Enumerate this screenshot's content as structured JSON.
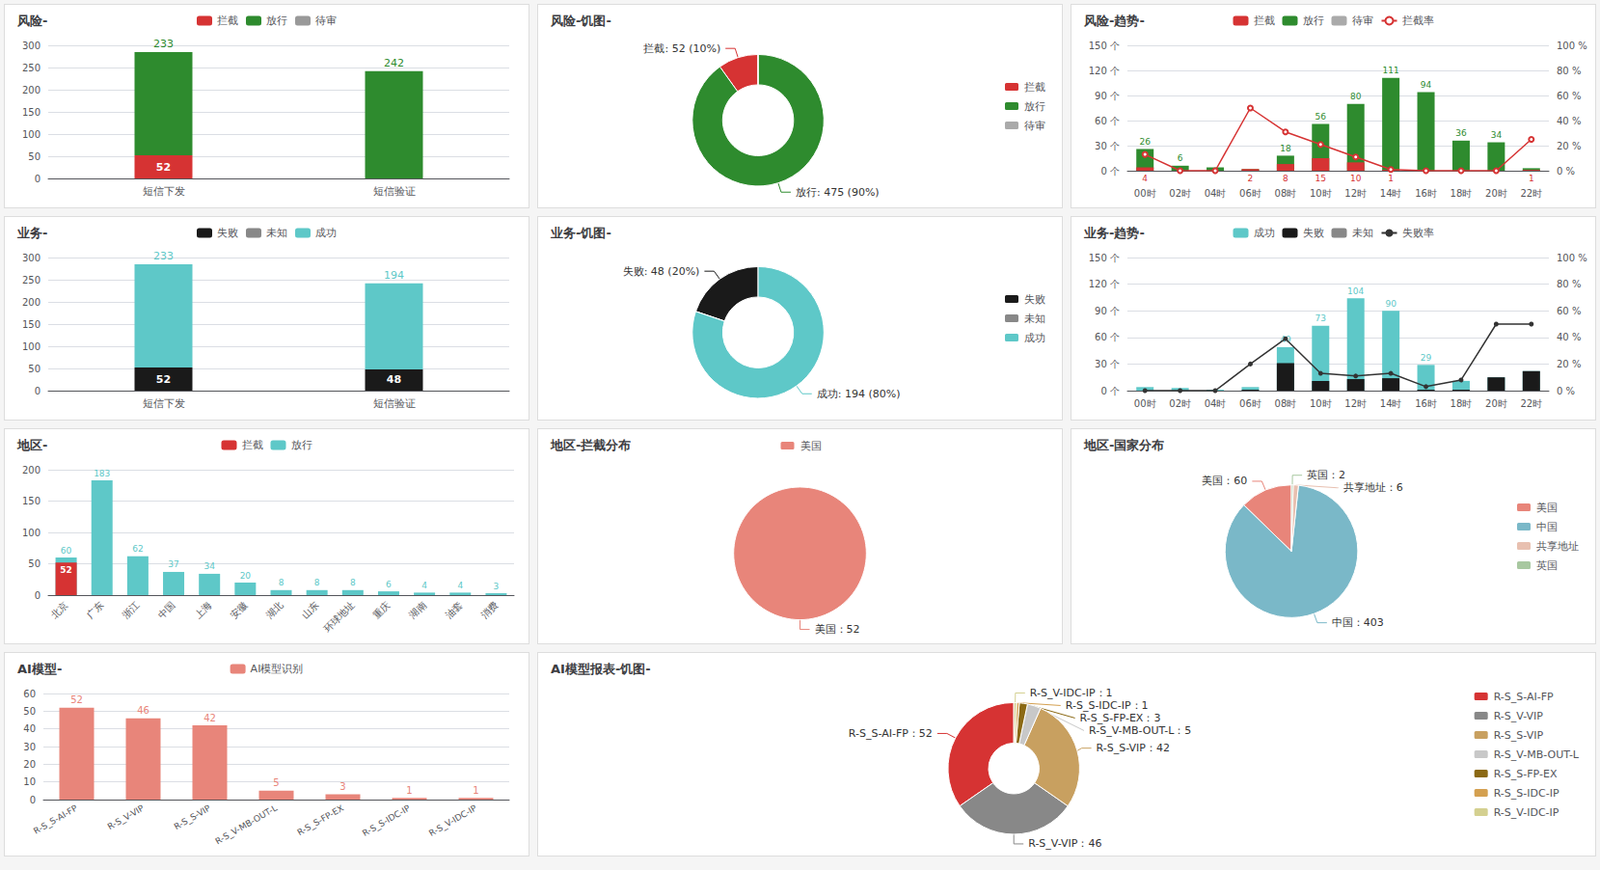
{
  "chart_data": [
    {
      "type": "bar",
      "title": "风险-",
      "categories": [
        "短信下发",
        "短信验证"
      ],
      "stacked": true,
      "series": [
        {
          "name": "拦截",
          "color": "#d63333",
          "values": [
            52,
            0
          ],
          "value_labels": [
            "52",
            null
          ]
        },
        {
          "name": "放行",
          "color": "#2e8b2e",
          "values": [
            233,
            242
          ],
          "value_labels": [
            "233",
            "242"
          ]
        },
        {
          "name": "待审",
          "color": "#999999",
          "values": [
            0,
            0
          ]
        }
      ],
      "ylim": [
        0,
        300
      ],
      "yticks": [
        0,
        50,
        100,
        150,
        200,
        250,
        300
      ],
      "grid": true,
      "data_labels": true,
      "legend": "top"
    },
    {
      "type": "pie",
      "title": "风险-饥图-",
      "labels": [
        "拦截",
        "放行",
        "待审"
      ],
      "values": [
        52,
        475,
        0
      ],
      "colors": [
        "#d63333",
        "#2e8b2e",
        "#aaaaaa"
      ],
      "annotations": [
        "拦截: 52 (10%)",
        "放行: 475 (90%)",
        null
      ],
      "legend": "right"
    },
    {
      "type": "bar",
      "title": "风险-趋势-",
      "categories": [
        "00时",
        "02时",
        "04时",
        "06时",
        "08时",
        "10时",
        "12时",
        "14时",
        "16时",
        "18时",
        "20时",
        "22时"
      ],
      "series": [
        {
          "name": "拦截",
          "type": "bar",
          "color": "#d63333",
          "values": [
            4,
            0,
            0,
            2,
            8,
            15,
            10,
            1,
            0,
            0,
            0,
            1
          ],
          "value_labels": [
            "4",
            null,
            null,
            "2",
            "8",
            "15",
            "10",
            "1",
            null,
            null,
            null,
            "1"
          ]
        },
        {
          "name": "放行",
          "type": "bar",
          "color": "#2e8b2e",
          "values": [
            26,
            6,
            4,
            2,
            18,
            56,
            80,
            111,
            94,
            36,
            34,
            3
          ],
          "value_labels": [
            "26",
            "6",
            null,
            null,
            "18",
            "56",
            "80",
            "111",
            "94",
            "36",
            "34",
            null
          ]
        },
        {
          "name": "待审",
          "type": "bar",
          "color": "#aaaaaa",
          "values": [
            0,
            0,
            0,
            0,
            0,
            0,
            0,
            0,
            0,
            0,
            0,
            0
          ]
        },
        {
          "name": "拦截率",
          "type": "line",
          "color": "#d63333",
          "axis": "y2",
          "marker": "hollow_circle",
          "values": [
            13,
            0,
            0,
            50,
            31,
            21,
            11,
            1,
            0,
            0,
            0,
            25
          ]
        }
      ],
      "ylim": [
        0,
        150
      ],
      "yticks": [
        {
          "value": 0,
          "label": "0 个"
        },
        {
          "value": 30,
          "label": "30 个"
        },
        {
          "value": 60,
          "label": "60 个"
        },
        {
          "value": 90,
          "label": "90 个"
        },
        {
          "value": 120,
          "label": "120 个"
        },
        {
          "value": 150,
          "label": "150 个"
        }
      ],
      "y2lim": [
        0,
        100
      ],
      "y2ticks": [
        {
          "value": 0,
          "label": "0 %"
        },
        {
          "value": 20,
          "label": "20 %"
        },
        {
          "value": 40,
          "label": "40 %"
        },
        {
          "value": 60,
          "label": "60 %"
        },
        {
          "value": 80,
          "label": "80 %"
        },
        {
          "value": 100,
          "label": "100 %"
        }
      ],
      "grid": true,
      "data_labels": true,
      "legend": "top"
    },
    {
      "type": "bar",
      "title": "业务-",
      "categories": [
        "短信下发",
        "短信验证"
      ],
      "stacked": true,
      "series": [
        {
          "name": "失败",
          "color": "#1a1a1a",
          "values": [
            52,
            48
          ],
          "value_labels": [
            "52",
            "48"
          ]
        },
        {
          "name": "未知",
          "color": "#888888",
          "values": [
            0,
            0
          ]
        },
        {
          "name": "成功",
          "color": "#5ec8c8",
          "values": [
            233,
            194
          ],
          "value_labels": [
            "233",
            "194"
          ]
        }
      ],
      "ylim": [
        0,
        300
      ],
      "yticks": [
        0,
        50,
        100,
        150,
        200,
        250,
        300
      ],
      "grid": true,
      "data_labels": true,
      "legend": "top"
    },
    {
      "type": "pie",
      "title": "业务-饥图-",
      "labels": [
        "失败",
        "未知",
        "成功"
      ],
      "values": [
        48,
        0,
        194
      ],
      "colors": [
        "#1a1a1a",
        "#888888",
        "#5ec8c8"
      ],
      "annotations": [
        "失败: 48 (20%)",
        null,
        "成功: 194 (80%)"
      ],
      "legend": "right"
    },
    {
      "type": "bar",
      "title": "业务-趋势-",
      "categories": [
        "00时",
        "02时",
        "04时",
        "06时",
        "08时",
        "10时",
        "12时",
        "14时",
        "16时",
        "18时",
        "20时",
        "22时"
      ],
      "series": [
        {
          "name": "成功",
          "type": "bar",
          "color": "#5ec8c8",
          "values": [
            4,
            3,
            1,
            4,
            49,
            73,
            104,
            90,
            29,
            11,
            15,
            22
          ],
          "value_labels": [
            null,
            null,
            null,
            null,
            "49",
            "73",
            "104",
            "90",
            "29",
            null,
            null,
            null
          ]
        },
        {
          "name": "失败",
          "type": "bar",
          "color": "#1a1a1a",
          "values": [
            0,
            0,
            0,
            1,
            31,
            11,
            13,
            14,
            1,
            1,
            15,
            22
          ]
        },
        {
          "name": "未知",
          "type": "bar",
          "color": "#888888",
          "values": [
            0,
            0,
            0,
            0,
            0,
            0,
            0,
            0,
            0,
            0,
            0,
            0
          ]
        },
        {
          "name": "失败率",
          "type": "line",
          "color": "#333333",
          "axis": "y2",
          "marker": "circle",
          "values": [
            0,
            0,
            0,
            20,
            39,
            13,
            11,
            13,
            3,
            8,
            50,
            50
          ]
        }
      ],
      "ylim": [
        0,
        150
      ],
      "yticks": [
        {
          "value": 0,
          "label": "0 个"
        },
        {
          "value": 30,
          "label": "30 个"
        },
        {
          "value": 60,
          "label": "60 个"
        },
        {
          "value": 90,
          "label": "90 个"
        },
        {
          "value": 120,
          "label": "120 个"
        },
        {
          "value": 150,
          "label": "150 个"
        }
      ],
      "y2lim": [
        0,
        100
      ],
      "y2ticks": [
        {
          "value": 0,
          "label": "0 %"
        },
        {
          "value": 20,
          "label": "20 %"
        },
        {
          "value": 40,
          "label": "40 %"
        },
        {
          "value": 60,
          "label": "60 %"
        },
        {
          "value": 80,
          "label": "80 %"
        },
        {
          "value": 100,
          "label": "100 %"
        }
      ],
      "grid": true,
      "data_labels": true,
      "legend": "top"
    },
    {
      "type": "bar",
      "title": "地区-",
      "categories": [
        "北京",
        "广东",
        "浙江",
        "中国",
        "上海",
        "安徽",
        "湖北",
        "山东",
        "环球地址",
        "重庆",
        "湖南",
        "油套",
        "消费"
      ],
      "series": [
        {
          "name": "拦截",
          "color": "#d63333",
          "values": [
            52,
            0,
            0,
            0,
            0,
            0,
            0,
            0,
            0,
            0,
            0,
            0,
            0
          ],
          "value_labels": [
            "52",
            null,
            null,
            null,
            null,
            null,
            null,
            null,
            null,
            null,
            null,
            null,
            null
          ]
        },
        {
          "name": "放行",
          "color": "#5ec8c8",
          "values": [
            60,
            183,
            62,
            37,
            34,
            20,
            8,
            8,
            8,
            6,
            4,
            4,
            3
          ],
          "value_labels": [
            "60",
            "183",
            "62",
            "37",
            "34",
            "20",
            "8",
            "8",
            "8",
            "6",
            "4",
            "4",
            "3"
          ]
        }
      ],
      "ylim": [
        0,
        200
      ],
      "yticks": [
        0,
        50,
        100,
        150,
        200
      ],
      "grid": true,
      "data_labels": true,
      "legend": "top"
    },
    {
      "type": "pie",
      "title": "地区-拦截分布",
      "labels": [
        "美国"
      ],
      "values": [
        52
      ],
      "colors": [
        "#e8857a"
      ],
      "annotations": [
        "美国：52"
      ],
      "legend": "top"
    },
    {
      "type": "pie",
      "title": "地区-国家分布",
      "labels": [
        "美国",
        "中国",
        "共享地址",
        "英国"
      ],
      "values": [
        60,
        403,
        6,
        2
      ],
      "colors": [
        "#e8857a",
        "#7ab8c8",
        "#e8c0b0",
        "#a8c8a0"
      ],
      "annotations": [
        "美国：60",
        "中国：403",
        "共享地址：6",
        "英国：2"
      ],
      "legend": "right"
    },
    {
      "type": "bar",
      "title": "AI模型-",
      "categories": [
        "R-S_S-AI-FP",
        "R-S_V-VIP",
        "R-S_S-VIP",
        "R-S_V-MB-OUT-L",
        "R-S_S-FP-EX",
        "R-S_S-IDC-IP",
        "R-S_V-IDC-IP"
      ],
      "series": [
        {
          "name": "AI模型识别",
          "color": "#e8857a",
          "values": [
            52,
            46,
            42,
            5,
            3,
            1,
            1
          ],
          "value_labels": [
            "52",
            "46",
            "42",
            "5",
            "3",
            "1",
            "1"
          ]
        }
      ],
      "ylim": [
        0,
        60
      ],
      "yticks": [
        0,
        10,
        20,
        30,
        40,
        50,
        60
      ],
      "grid": true,
      "data_labels": true,
      "legend": "top"
    },
    {
      "type": "pie",
      "title": "AI模型报表-饥图-",
      "labels": [
        "R-S_S-AI-FP",
        "R-S_V-VIP",
        "R-S_S-VIP",
        "R-S_V-MB-OUT-L",
        "R-S_S-FP-EX",
        "R-S_S-IDC-IP",
        "R-S_V-IDC-IP"
      ],
      "values": [
        52,
        46,
        42,
        5,
        3,
        1,
        1
      ],
      "colors": [
        "#d63333",
        "#888888",
        "#c8a060",
        "#c8c8c8",
        "#8b6914",
        "#d4a050",
        "#d4d090"
      ],
      "annotations": [
        "R-S_S-AI-FP：52",
        "R-S_V-VIP：46",
        "R-S_S-VIP：42",
        "R-S_V-MB-OUT-L：5",
        "R-S_S-FP-EX：3",
        "R-S_S-IDC-IP：1",
        "R-S_V-IDC-IP：1"
      ],
      "legend": "right"
    }
  ]
}
